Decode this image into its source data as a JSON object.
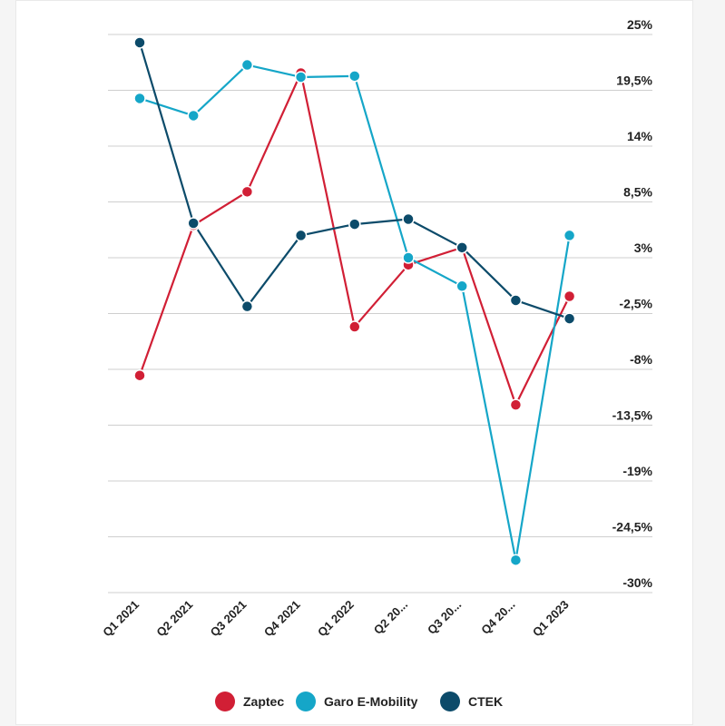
{
  "chart_data": {
    "type": "line",
    "title": "",
    "xlabel": "",
    "ylabel": "",
    "categories": [
      "Q1 2021",
      "Q2 2021",
      "Q3 2021",
      "Q4 2021",
      "Q1 2022",
      "Q2 20...",
      "Q3 20...",
      "Q4 20...",
      "Q1 2023"
    ],
    "y_ticks": [
      {
        "value": 25,
        "label": "25%"
      },
      {
        "value": 19.5,
        "label": "19,5%"
      },
      {
        "value": 14,
        "label": "14%"
      },
      {
        "value": 8.5,
        "label": "8,5%"
      },
      {
        "value": 3,
        "label": "3%"
      },
      {
        "value": -2.5,
        "label": "-2,5%"
      },
      {
        "value": -8,
        "label": "-8%"
      },
      {
        "value": -13.5,
        "label": "-13,5%"
      },
      {
        "value": -19,
        "label": "-19%"
      },
      {
        "value": -24.5,
        "label": "-24,5%"
      },
      {
        "value": -30,
        "label": "-30%"
      }
    ],
    "ylim": [
      -30,
      25
    ],
    "y_axis_position": "right",
    "grid": true,
    "legend_position": "bottom",
    "series": [
      {
        "name": "Zaptec",
        "color": "#d11f35",
        "values": [
          -8.6,
          6.2,
          9.5,
          21.2,
          -3.8,
          2.3,
          4.0,
          -11.5,
          -0.8
        ]
      },
      {
        "name": "Garo E-Mobility",
        "color": "#15a6c8",
        "values": [
          18.7,
          17.0,
          22.0,
          20.8,
          20.9,
          3.0,
          0.2,
          -26.8,
          5.2
        ]
      },
      {
        "name": "CTEK",
        "color": "#0c4b6a",
        "values": [
          24.2,
          6.4,
          -1.8,
          5.2,
          6.3,
          6.8,
          4.0,
          -1.2,
          -3.0
        ]
      }
    ]
  }
}
